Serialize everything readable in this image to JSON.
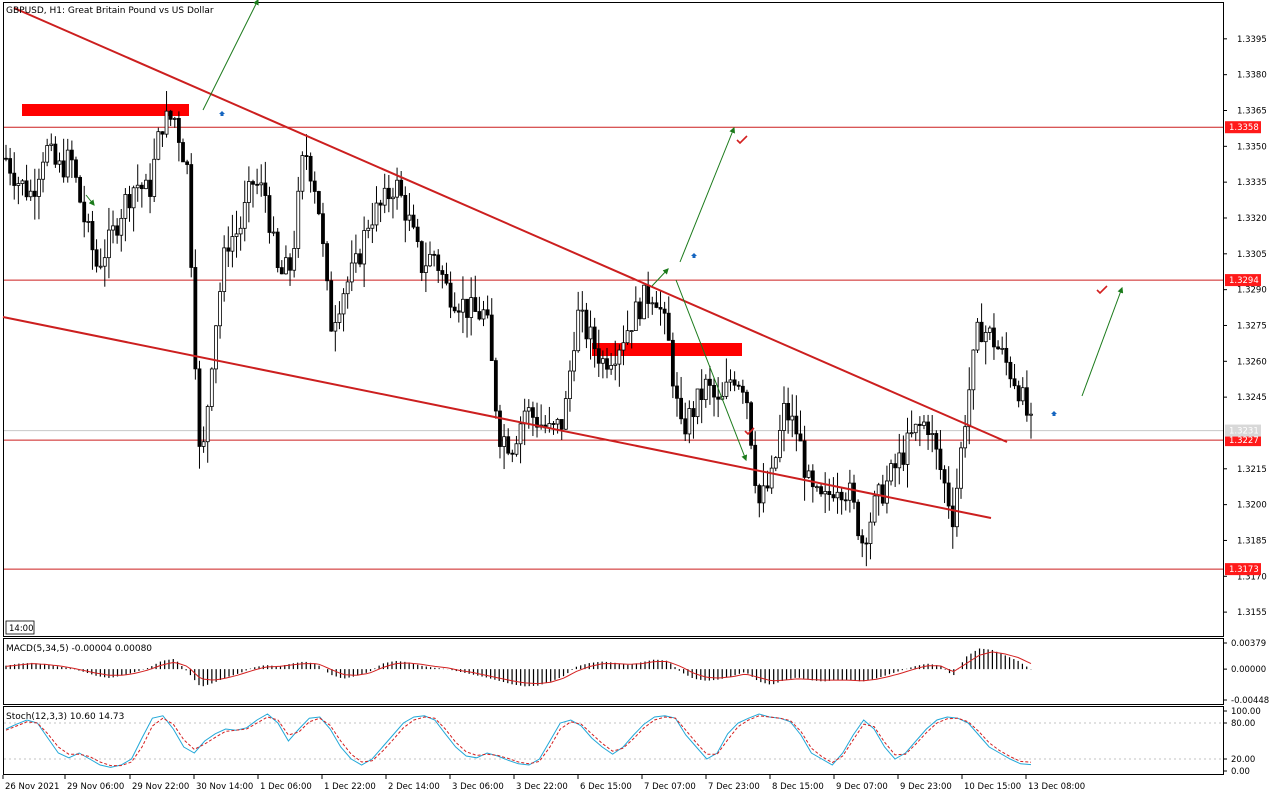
{
  "header": {
    "symbol_title": "GBPUSD, H1:  Great Britain Pound vs US Dollar",
    "period_tag": "14:00"
  },
  "colors": {
    "background": "#ffffff",
    "candles": "#000000",
    "trendline": "#cc1f1f",
    "level_line": "#cc1f1f",
    "zone": "#ff0000",
    "level_label_bg": "#ff1a1a",
    "arrow_green": "#1a7a1a",
    "marker_blue": "#1565c0",
    "check_red": "#d42020",
    "macd_signal": "#d42020",
    "stoch_main": "#22a8d8",
    "stoch_signal": "#d42020"
  },
  "chart_data": [
    {
      "type": "candlestick",
      "panel": "price",
      "title": "GBPUSD, H1:  Great Britain Pound vs US Dollar",
      "y_ticks": [
        "1.3395",
        "1.3380",
        "1.3365",
        "1.3350",
        "1.3335",
        "1.3320",
        "1.3305",
        "1.3290",
        "1.3275",
        "1.3260",
        "1.3245",
        "1.3215",
        "1.3200",
        "1.3185",
        "1.3170",
        "1.3155"
      ],
      "ylim": [
        1.3145,
        1.341
      ],
      "x_ticks": [
        "26 Nov 2021",
        "29 Nov 06:00",
        "29 Nov 22:00",
        "30 Nov 14:00",
        "1 Dec 06:00",
        "1 Dec 22:00",
        "2 Dec 14:00",
        "3 Dec 06:00",
        "3 Dec 22:00",
        "6 Dec 15:00",
        "7 Dec 07:00",
        "7 Dec 23:00",
        "8 Dec 15:00",
        "9 Dec 07:00",
        "9 Dec 23:00",
        "10 Dec 15:00",
        "13 Dec 08:00"
      ],
      "horizontal_levels": [
        {
          "price": 1.3358,
          "label": "1.3358"
        },
        {
          "price": 1.3294,
          "label": "1.3294"
        },
        {
          "price": 1.3227,
          "label": "1.3227"
        },
        {
          "price": 1.3173,
          "label": "1.3173"
        }
      ],
      "current_price_label": "1.3231",
      "close_path": [
        1.3345,
        1.3335,
        1.333,
        1.335,
        1.334,
        1.3345,
        1.332,
        1.33,
        1.331,
        1.3325,
        1.3335,
        1.333,
        1.336,
        1.3362,
        1.334,
        1.321,
        1.327,
        1.331,
        1.3315,
        1.3335,
        1.333,
        1.3295,
        1.33,
        1.335,
        1.333,
        1.3275,
        1.329,
        1.33,
        1.332,
        1.3325,
        1.3335,
        1.332,
        1.33,
        1.3305,
        1.329,
        1.3285,
        1.328,
        1.328,
        1.323,
        1.3225,
        1.324,
        1.3235,
        1.323,
        1.3235,
        1.328,
        1.327,
        1.326,
        1.3265,
        1.3275,
        1.3285,
        1.329,
        1.327,
        1.323,
        1.324,
        1.325,
        1.324,
        1.3255,
        1.325,
        1.32,
        1.321,
        1.324,
        1.323,
        1.3205,
        1.32,
        1.321,
        1.3205,
        1.3185,
        1.32,
        1.321,
        1.322,
        1.323,
        1.3235,
        1.3215,
        1.3195,
        1.324,
        1.3275,
        1.327,
        1.326,
        1.325,
        1.3232
      ]
    },
    {
      "type": "histogram",
      "panel": "macd",
      "title": "MACD(5,34,5) -0.00004 0.00080",
      "y_ticks": [
        "0.00379",
        "0.00000",
        "-0.00448"
      ],
      "ylim": [
        -0.00448,
        0.00379
      ],
      "values": [
        0.0005,
        0.0008,
        0.0009,
        0.0007,
        0.0004,
        0.0001,
        -0.0004,
        -0.001,
        -0.0013,
        -0.0009,
        -0.0004,
        0.0002,
        0.0012,
        0.0015,
        -0.0004,
        -0.0026,
        -0.002,
        -0.0012,
        -0.0006,
        0.0002,
        0.0006,
        0.0004,
        0.0008,
        0.0011,
        0.0007,
        -0.0008,
        -0.0014,
        -0.001,
        -0.0004,
        0.0008,
        0.0012,
        0.001,
        0.0005,
        0.0002,
        0.0,
        -0.0004,
        -0.0008,
        -0.0012,
        -0.0017,
        -0.0022,
        -0.0025,
        -0.0024,
        -0.0018,
        -0.001,
        0.0004,
        0.0009,
        0.0011,
        0.0009,
        0.0006,
        0.001,
        0.0014,
        0.0012,
        -0.0004,
        -0.0014,
        -0.0017,
        -0.0015,
        -0.001,
        -0.0004,
        -0.0018,
        -0.0023,
        -0.0016,
        -0.0012,
        -0.0016,
        -0.0018,
        -0.0016,
        -0.0016,
        -0.0018,
        -0.0014,
        -0.0008,
        -0.0002,
        0.0004,
        0.0008,
        0.0005,
        -0.001,
        0.0018,
        0.003,
        0.0028,
        0.002,
        0.0012,
        -4e-05
      ],
      "signal": [
        0.0004,
        0.0006,
        0.0008,
        0.0007,
        0.0005,
        0.0002,
        -0.0002,
        -0.0006,
        -0.0009,
        -0.0009,
        -0.0006,
        -0.0001,
        0.0006,
        0.001,
        0.0004,
        -0.0014,
        -0.0016,
        -0.0013,
        -0.0008,
        -0.0002,
        0.0003,
        0.0004,
        0.0006,
        0.0008,
        0.0008,
        0.0,
        -0.0008,
        -0.0009,
        -0.0006,
        0.0002,
        0.0008,
        0.0009,
        0.0007,
        0.0004,
        0.0002,
        -0.0002,
        -0.0005,
        -0.0009,
        -0.0013,
        -0.0017,
        -0.002,
        -0.0021,
        -0.0019,
        -0.0013,
        -0.0003,
        0.0004,
        0.0008,
        0.0008,
        0.0007,
        0.0008,
        0.0011,
        0.0011,
        0.0004,
        -0.0006,
        -0.0012,
        -0.0013,
        -0.0011,
        -0.0007,
        -0.0012,
        -0.0017,
        -0.0016,
        -0.0014,
        -0.0015,
        -0.0016,
        -0.0016,
        -0.0016,
        -0.0017,
        -0.0015,
        -0.0011,
        -0.0006,
        0.0,
        0.0005,
        0.0005,
        -0.0004,
        0.0008,
        0.002,
        0.0025,
        0.0022,
        0.0017,
        0.0008
      ]
    },
    {
      "type": "line",
      "panel": "stochastic",
      "title": "Stoch(12,3,3) 10.60 14.73",
      "y_ticks": [
        "100.00",
        "80.00",
        "20.00",
        "0.00"
      ],
      "ylim": [
        0,
        100
      ],
      "series": [
        {
          "values": [
            70,
            78,
            85,
            80,
            55,
            30,
            22,
            30,
            20,
            10,
            6,
            10,
            20,
            55,
            88,
            92,
            70,
            40,
            30,
            50,
            62,
            70,
            68,
            72,
            85,
            95,
            80,
            50,
            70,
            88,
            90,
            70,
            40,
            20,
            10,
            20,
            40,
            60,
            80,
            90,
            92,
            85,
            62,
            40,
            25,
            22,
            30,
            25,
            18,
            12,
            10,
            20,
            50,
            80,
            85,
            75,
            55,
            40,
            28,
            40,
            60,
            78,
            90,
            92,
            88,
            60,
            40,
            20,
            30,
            62,
            80,
            88,
            95,
            90,
            88,
            82,
            60,
            30,
            20,
            10,
            30,
            60,
            85,
            70,
            40,
            20,
            30,
            50,
            70,
            85,
            90,
            88,
            80,
            60,
            40,
            30,
            20,
            12,
            10.6
          ]
        },
        {
          "values": [
            68,
            75,
            82,
            80,
            62,
            40,
            28,
            28,
            24,
            15,
            9,
            9,
            15,
            40,
            75,
            88,
            78,
            52,
            36,
            45,
            56,
            66,
            68,
            70,
            80,
            90,
            85,
            60,
            65,
            82,
            88,
            76,
            50,
            28,
            15,
            17,
            33,
            52,
            72,
            85,
            90,
            88,
            70,
            48,
            32,
            26,
            28,
            26,
            21,
            15,
            12,
            16,
            40,
            70,
            82,
            78,
            62,
            46,
            33,
            38,
            54,
            72,
            85,
            90,
            88,
            68,
            47,
            28,
            28,
            52,
            74,
            85,
            92,
            90,
            88,
            84,
            66,
            38,
            24,
            14,
            25,
            52,
            78,
            74,
            48,
            27,
            28,
            45,
            64,
            80,
            87,
            88,
            82,
            66,
            47,
            34,
            24,
            16,
            14.73
          ]
        }
      ]
    }
  ]
}
